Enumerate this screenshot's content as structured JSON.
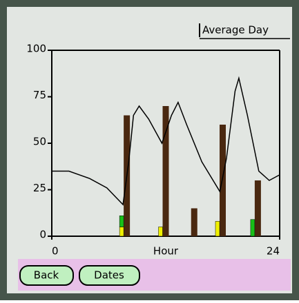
{
  "ui": {
    "trigger": "Average Day",
    "buttons": [
      "Back",
      "Dates"
    ]
  },
  "chart_data": {
    "type": "bar",
    "xlabel": "Hour",
    "xlim": [
      0,
      24
    ],
    "xticks": [
      0,
      24
    ],
    "ylim": [
      0,
      100
    ],
    "yticks": [
      0,
      25,
      50,
      75,
      100
    ],
    "x": [
      7.5,
      11.6,
      14.6,
      17.6,
      21.3
    ],
    "series": [
      {
        "color": "#4a2810",
        "values": [
          65,
          70,
          15,
          60,
          30
        ]
      },
      {
        "color": "#f0f000",
        "values": [
          5,
          5,
          0,
          8,
          0
        ],
        "stack": "small"
      },
      {
        "color": "#18c018",
        "values": [
          6,
          0,
          0,
          0,
          9
        ],
        "stack": "small"
      }
    ],
    "line": {
      "color": "#000000",
      "x": [
        0,
        1.8,
        4,
        5.8,
        7.5,
        8.1,
        8.6,
        9.2,
        10.2,
        11.6,
        12.6,
        13.3,
        14.2,
        15.8,
        17.7,
        18.4,
        19.3,
        19.7,
        20.6,
        21.8,
        22.9,
        24
      ],
      "values": [
        35,
        35,
        31,
        26,
        17,
        40,
        65,
        70,
        63,
        50,
        65,
        72,
        60,
        40,
        24,
        42,
        78,
        85,
        65,
        35,
        30,
        33
      ]
    }
  }
}
